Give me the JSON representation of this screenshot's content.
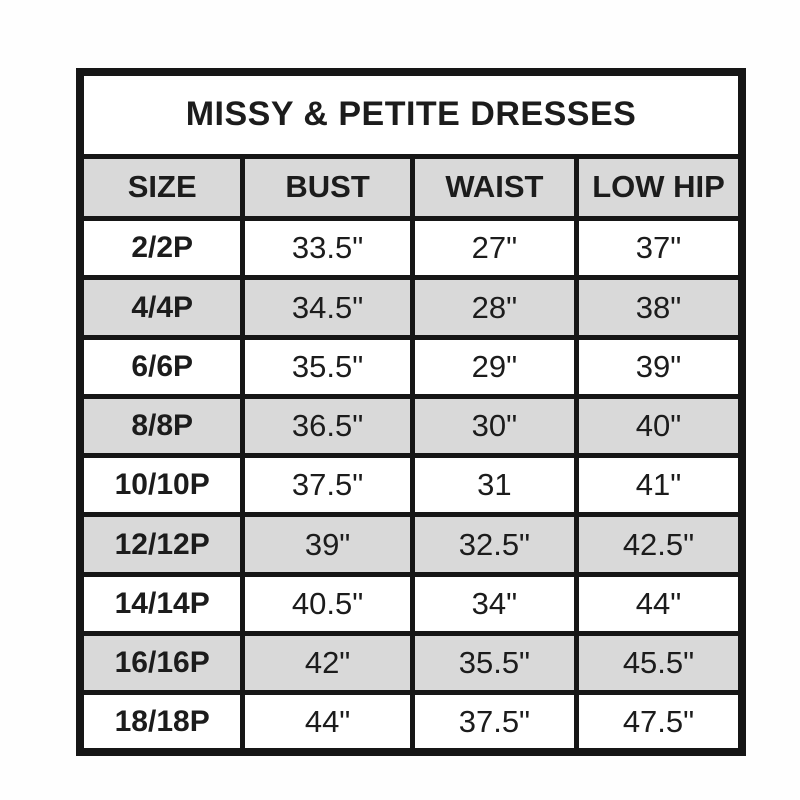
{
  "document": {
    "title": "MISSY & PETITE DRESSES"
  },
  "table": {
    "columns": [
      "SIZE",
      "BUST",
      "WAIST",
      "LOW HIP"
    ],
    "rows": [
      {
        "size": "2/2P",
        "bust": "33.5\"",
        "waist": "27\"",
        "low_hip": "37\""
      },
      {
        "size": "4/4P",
        "bust": "34.5\"",
        "waist": "28\"",
        "low_hip": "38\""
      },
      {
        "size": "6/6P",
        "bust": "35.5\"",
        "waist": "29\"",
        "low_hip": "39\""
      },
      {
        "size": "8/8P",
        "bust": "36.5\"",
        "waist": "30\"",
        "low_hip": "40\""
      },
      {
        "size": "10/10P",
        "bust": "37.5\"",
        "waist": "31",
        "low_hip": "41\""
      },
      {
        "size": "12/12P",
        "bust": "39\"",
        "waist": "32.5\"",
        "low_hip": "42.5\""
      },
      {
        "size": "14/14P",
        "bust": "40.5\"",
        "waist": "34\"",
        "low_hip": "44\""
      },
      {
        "size": "16/16P",
        "bust": "42\"",
        "waist": "35.5\"",
        "low_hip": "45.5\""
      },
      {
        "size": "18/18P",
        "bust": "44\"",
        "waist": "37.5\"",
        "low_hip": "47.5\""
      }
    ]
  },
  "colors": {
    "shaded_row": "#d9d9d9",
    "border": "#161616",
    "text": "#1c1c1c",
    "background": "#ffffff"
  }
}
